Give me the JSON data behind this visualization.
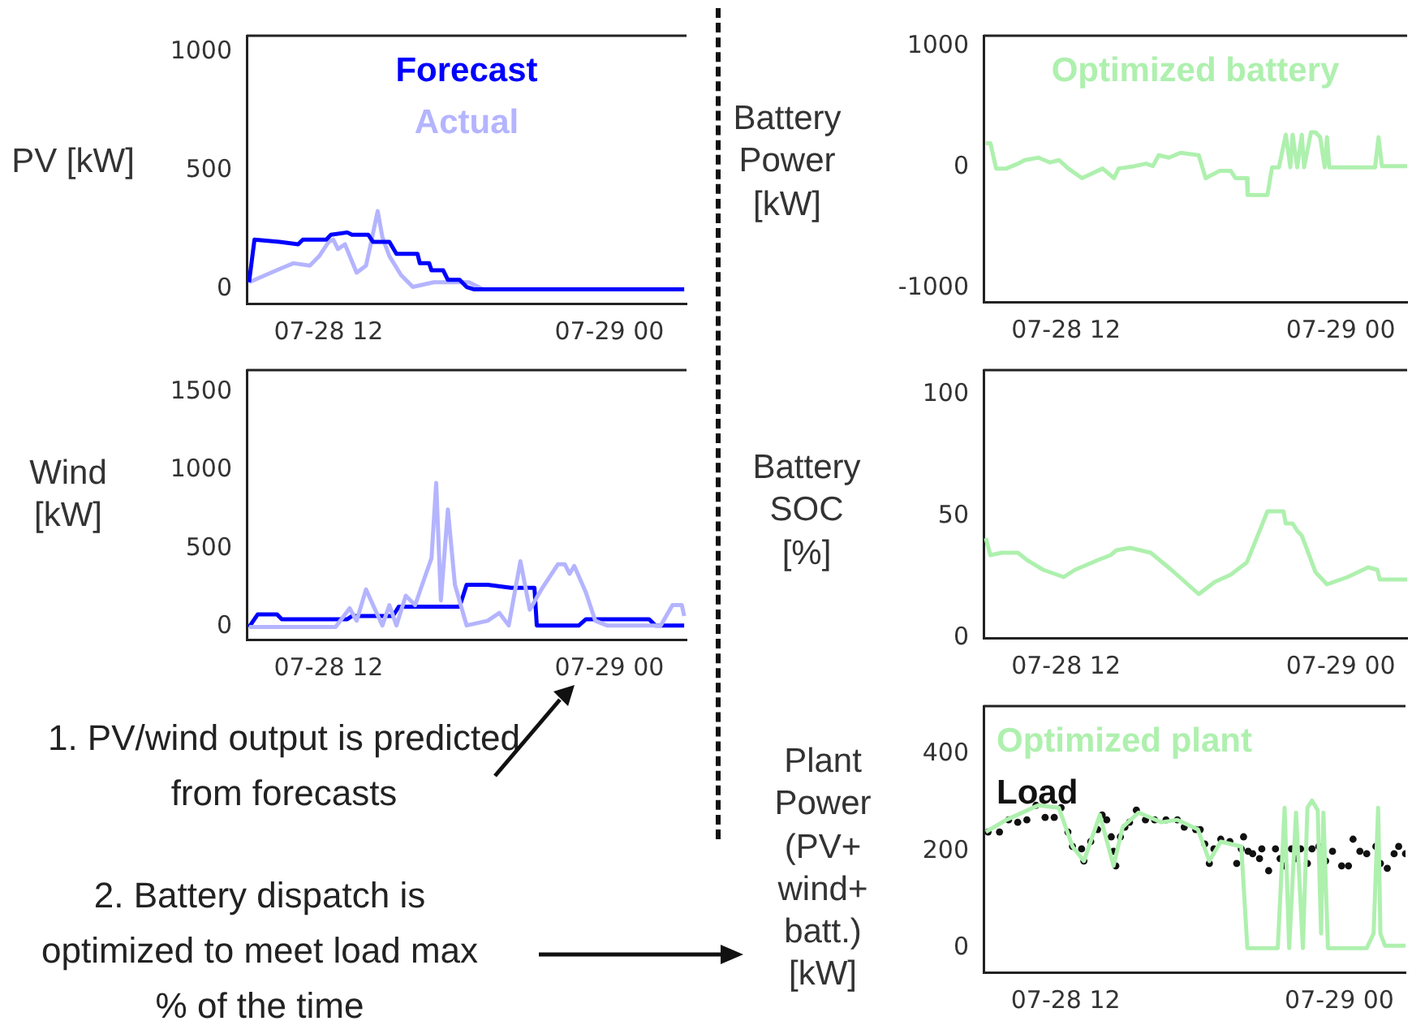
{
  "chart_data": [
    {
      "type": "line",
      "ylabel": "PV [kW]",
      "xlim": [
        "--07-28T08:30",
        "--07-29T03:18"
      ],
      "xticks": [
        {
          "value": "--07-28T12:00",
          "label": "07-28 12"
        },
        {
          "value": "--07-29T00:00",
          "label": "07-29 00"
        }
      ],
      "ylim": [
        -60,
        1070
      ],
      "yticks": [
        0,
        500,
        1000
      ],
      "legend": "top",
      "series": [
        {
          "name": "Forecast",
          "color": "#0000ff",
          "x": [
            "--07-28T08:36",
            "--07-28T08:50",
            "--07-28T09:54",
            "--07-28T10:42",
            "--07-28T10:54",
            "--07-28T11:54",
            "--07-28T12:06",
            "--07-28T12:48",
            "--07-28T13:00",
            "--07-28T13:42",
            "--07-28T13:54",
            "--07-28T14:36",
            "--07-28T14:54",
            "--07-28T15:48",
            "--07-28T15:54",
            "--07-28T16:18",
            "--07-28T16:24",
            "--07-28T16:54",
            "--07-28T17:06",
            "--07-28T17:36",
            "--07-28T17:54",
            "--07-28T18:12",
            "--07-29T03:12"
          ],
          "values": [
            30,
            210,
            200,
            190,
            210,
            210,
            230,
            240,
            230,
            230,
            200,
            200,
            150,
            150,
            110,
            110,
            80,
            80,
            40,
            40,
            10,
            0,
            0
          ]
        },
        {
          "name": "Actual",
          "color": "#b4b4ff",
          "x": [
            "--07-28T08:36",
            "--07-28T09:18",
            "--07-28T10:00",
            "--07-28T10:30",
            "--07-28T11:12",
            "--07-28T11:36",
            "--07-28T12:00",
            "--07-28T12:12",
            "--07-28T12:24",
            "--07-28T12:42",
            "--07-28T13:12",
            "--07-28T13:36",
            "--07-28T13:48",
            "--07-28T14:06",
            "--07-28T14:18",
            "--07-28T14:36",
            "--07-28T15:06",
            "--07-28T15:36",
            "--07-28T16:30",
            "--07-28T17:24",
            "--07-28T18:00",
            "--07-28T18:36",
            "--07-29T03:12"
          ],
          "values": [
            30,
            60,
            90,
            110,
            100,
            140,
            200,
            210,
            170,
            190,
            70,
            100,
            190,
            330,
            220,
            140,
            60,
            10,
            30,
            30,
            30,
            0,
            0
          ]
        }
      ]
    },
    {
      "type": "line",
      "ylabel": "Wind [kW]",
      "xlim": [
        "--07-28T08:30",
        "--07-29T03:18"
      ],
      "xticks": [
        {
          "value": "--07-28T12:00",
          "label": "07-28 12"
        },
        {
          "value": "--07-29T00:00",
          "label": "07-29 00"
        }
      ],
      "ylim": [
        -80,
        1640
      ],
      "yticks": [
        0,
        500,
        1000,
        1500
      ],
      "annotations": [
        "1. PV/wind output is predicted from forecasts"
      ],
      "series": [
        {
          "color": "#b4b4ff",
          "x": [
            "--07-28T08:36",
            "--07-28T09:48",
            "--07-28T12:18",
            "--07-28T12:54",
            "--07-28T13:12",
            "--07-28T13:36",
            "--07-28T13:54",
            "--07-28T14:18",
            "--07-28T14:36",
            "--07-28T14:54",
            "--07-28T15:18",
            "--07-28T15:42",
            "--07-28T16:00",
            "--07-28T16:24",
            "--07-28T16:36",
            "--07-28T16:48",
            "--07-28T17:06",
            "--07-28T17:24",
            "--07-28T17:54",
            "--07-28T18:48",
            "--07-28T19:18",
            "--07-28T19:42",
            "--07-28T20:12",
            "--07-28T20:36",
            "--07-28T21:06",
            "--07-28T21:48",
            "--07-28T22:06",
            "--07-28T22:18",
            "--07-28T22:30",
            "--07-28T23:00",
            "--07-28T23:24",
            "--07-28T23:54",
            "--07-29T02:12",
            "--07-29T02:42",
            "--07-29T03:06",
            "--07-29T03:12"
          ],
          "values": [
            0,
            0,
            0,
            120,
            40,
            240,
            140,
            10,
            140,
            10,
            200,
            140,
            270,
            440,
            920,
            170,
            750,
            270,
            10,
            40,
            90,
            10,
            420,
            110,
            240,
            400,
            400,
            340,
            390,
            220,
            40,
            10,
            10,
            140,
            140,
            70
          ]
        },
        {
          "color": "#0000ff",
          "x": [
            "--07-28T08:36",
            "--07-28T08:58",
            "--07-28T09:48",
            "--07-28T10:00",
            "--07-28T12:48",
            "--07-28T13:00",
            "--07-28T14:45",
            "--07-28T15:00",
            "--07-28T17:36",
            "--07-28T17:54",
            "--07-28T18:48",
            "--07-28T19:48",
            "--07-28T20:48",
            "--07-28T20:54",
            "--07-28T22:42",
            "--07-28T23:00",
            "--07-29T01:42",
            "--07-29T01:58",
            "--07-29T03:12"
          ],
          "values": [
            0,
            80,
            80,
            50,
            50,
            70,
            70,
            130,
            130,
            270,
            270,
            250,
            250,
            10,
            10,
            50,
            50,
            10,
            10
          ]
        }
      ]
    },
    {
      "type": "line",
      "ylabel": "Battery Power [kW]",
      "xlim": [
        "--07-28T08:24",
        "--07-29T02:54"
      ],
      "xticks": [
        {
          "value": "--07-28T12:00",
          "label": "07-28 12"
        },
        {
          "value": "--07-29T00:00",
          "label": "07-29 00"
        }
      ],
      "ylim": [
        -1115,
        1090
      ],
      "yticks": [
        -1000,
        0,
        1000
      ],
      "legend": "top",
      "series": [
        {
          "name": "Optimized battery",
          "color": "#aef0ae",
          "x": [
            "--07-28T08:30",
            "--07-28T08:42",
            "--07-28T08:57",
            "--07-28T09:24",
            "--07-28T09:54",
            "--07-28T10:12",
            "--07-28T10:48",
            "--07-28T11:18",
            "--07-28T11:42",
            "--07-28T12:06",
            "--07-28T12:42",
            "--07-28T13:36",
            "--07-28T14:06",
            "--07-28T14:18",
            "--07-28T15:00",
            "--07-28T15:30",
            "--07-28T15:48",
            "--07-28T16:03",
            "--07-28T16:30",
            "--07-28T17:00",
            "--07-28T17:48",
            "--07-28T18:06",
            "--07-28T18:42",
            "--07-28T19:12",
            "--07-28T19:24",
            "--07-28T19:54",
            "--07-28T19:56",
            "--07-28T20:48",
            "--07-28T21:00",
            "--07-28T21:18",
            "--07-28T21:36",
            "--07-28T21:48",
            "--07-28T21:54",
            "--07-28T22:06",
            "--07-28T22:18",
            "--07-28T22:24",
            "--07-28T22:42",
            "--07-28T22:54",
            "--07-28T23:06",
            "--07-28T23:18",
            "--07-28T23:24",
            "--07-28T23:30",
            "--07-29T01:30",
            "--07-29T01:39",
            "--07-29T01:48",
            "--07-29T02:54"
          ],
          "values": [
            200,
            200,
            -10,
            -10,
            30,
            60,
            80,
            40,
            60,
            -10,
            -90,
            -10,
            -90,
            -10,
            10,
            30,
            10,
            100,
            80,
            120,
            100,
            -90,
            -30,
            -30,
            -90,
            -90,
            -230,
            -230,
            0,
            0,
            270,
            0,
            270,
            0,
            270,
            0,
            290,
            290,
            250,
            0,
            250,
            0,
            0,
            250,
            10,
            10
          ]
        }
      ]
    },
    {
      "type": "line",
      "ylabel": "Battery SOC [%]",
      "xlim": [
        "--07-28T08:24",
        "--07-29T02:54"
      ],
      "xticks": [
        {
          "value": "--07-28T12:00",
          "label": "07-28 12"
        },
        {
          "value": "--07-29T00:00",
          "label": "07-29 00"
        }
      ],
      "ylim": [
        0,
        110
      ],
      "yticks": [
        0,
        50,
        100
      ],
      "series": [
        {
          "color": "#aef0ae",
          "x": [
            "--07-28T08:30",
            "--07-28T08:42",
            "--07-28T09:12",
            "--07-28T09:54",
            "--07-28T10:18",
            "--07-28T11:00",
            "--07-28T11:54",
            "--07-28T12:24",
            "--07-28T13:24",
            "--07-28T13:57",
            "--07-28T14:12",
            "--07-28T14:48",
            "--07-28T15:42",
            "--07-28T16:36",
            "--07-28T17:48",
            "--07-28T18:30",
            "--07-28T19:12",
            "--07-28T19:54",
            "--07-28T20:48",
            "--07-28T21:30",
            "--07-28T21:36",
            "--07-28T21:54",
            "--07-28T22:06",
            "--07-28T22:18",
            "--07-28T22:54",
            "--07-28T23:24",
            "--07-29T00:18",
            "--07-29T01:12",
            "--07-29T01:36",
            "--07-29T01:42",
            "--07-29T02:54"
          ],
          "values": [
            41,
            34,
            35,
            35,
            32,
            28,
            25,
            28,
            32,
            34,
            36,
            37,
            35,
            28,
            18,
            23,
            26,
            31,
            52,
            52,
            47,
            47,
            44,
            42,
            27,
            22,
            25,
            29,
            28,
            24,
            24
          ]
        }
      ]
    },
    {
      "type": "line",
      "ylabel": "Plant Power (PV+ wind+ batt.) [kW]",
      "xlim": [
        "--07-28T08:24",
        "--07-29T02:54"
      ],
      "xticks": [
        {
          "value": "--07-28T12:00",
          "label": "07-28 12"
        },
        {
          "value": "--07-29T00:00",
          "label": "07-29 00"
        }
      ],
      "ylim": [
        -50,
        500
      ],
      "yticks": [
        0,
        200,
        400
      ],
      "legend": "top left",
      "annotations": [
        "2. Battery dispatch is optimized to meet load max % of the time"
      ],
      "series": [
        {
          "name": "Optimized plant",
          "color": "#aef0ae",
          "x": [
            "--07-28T08:30",
            "--07-28T09:24",
            "--07-28T10:48",
            "--07-28T11:42",
            "--07-28T12:18",
            "--07-28T12:48",
            "--07-28T13:30",
            "--07-28T14:06",
            "--07-28T14:30",
            "--07-28T15:12",
            "--07-28T16:12",
            "--07-28T16:54",
            "--07-28T17:48",
            "--07-28T18:18",
            "--07-28T18:48",
            "--07-28T19:42",
            "--07-28T19:58",
            "--07-28T21:18",
            "--07-28T21:36",
            "--07-28T21:48",
            "--07-28T22:06",
            "--07-28T22:24",
            "--07-28T22:36",
            "--07-28T22:48",
            "--07-28T23:03",
            "--07-28T23:12",
            "--07-28T23:18",
            "--07-28T23:30",
            "--07-29T01:12",
            "--07-29T01:30",
            "--07-29T01:42",
            "--07-29T01:48",
            "--07-29T02:00",
            "--07-29T02:54"
          ],
          "values": [
            240,
            265,
            295,
            290,
            210,
            180,
            275,
            170,
            250,
            280,
            260,
            265,
            245,
            180,
            220,
            210,
            0,
            0,
            290,
            0,
            280,
            0,
            290,
            305,
            285,
            30,
            280,
            0,
            0,
            30,
            290,
            30,
            5,
            5
          ]
        },
        {
          "name": "Load",
          "type": "scatter",
          "marker": "circle",
          "color": "#111111",
          "x": [
            "--07-28T08:36",
            "--07-28T09:06",
            "--07-28T09:30",
            "--07-28T09:54",
            "--07-28T10:18",
            "--07-28T10:42",
            "--07-28T11:06",
            "--07-28T11:30",
            "--07-28T11:48",
            "--07-28T12:06",
            "--07-28T12:18",
            "--07-28T12:42",
            "--07-28T12:48",
            "--07-28T13:06",
            "--07-28T13:24",
            "--07-28T13:36",
            "--07-28T13:48",
            "--07-28T14:00",
            "--07-28T14:06",
            "--07-28T14:12",
            "--07-28T14:24",
            "--07-28T14:36",
            "--07-28T14:48",
            "--07-28T15:06",
            "--07-28T15:30",
            "--07-28T15:54",
            "--07-28T16:24",
            "--07-28T16:54",
            "--07-28T17:12",
            "--07-28T17:42",
            "--07-28T17:54",
            "--07-28T18:06",
            "--07-28T18:18",
            "--07-28T18:30",
            "--07-28T18:48",
            "--07-28T19:12",
            "--07-28T19:30",
            "--07-28T19:42",
            "--07-28T19:48",
            "--07-28T20:00",
            "--07-28T20:12",
            "--07-28T20:30",
            "--07-28T20:36",
            "--07-28T20:54",
            "--07-28T21:12",
            "--07-28T21:24",
            "--07-28T21:36",
            "--07-28T21:54",
            "--07-28T22:06",
            "--07-28T22:18",
            "--07-28T22:36",
            "--07-28T22:48",
            "--07-28T23:06",
            "--07-28T23:24",
            "--07-28T23:42",
            "--07-29T00:06",
            "--07-29T00:24",
            "--07-29T00:36",
            "--07-29T00:54",
            "--07-29T01:12",
            "--07-29T01:36",
            "--07-29T01:48",
            "--07-29T02:06",
            "--07-29T02:24",
            "--07-29T02:36",
            "--07-29T02:54"
          ],
          "values": [
            240,
            240,
            265,
            260,
            265,
            295,
            270,
            270,
            290,
            240,
            210,
            205,
            180,
            220,
            245,
            275,
            265,
            230,
            200,
            170,
            230,
            250,
            260,
            285,
            265,
            265,
            265,
            265,
            250,
            245,
            245,
            215,
            175,
            205,
            225,
            220,
            175,
            205,
            230,
            200,
            195,
            185,
            205,
            160,
            205,
            185,
            170,
            205,
            185,
            205,
            175,
            205,
            210,
            180,
            200,
            170,
            170,
            225,
            200,
            195,
            210,
            175,
            165,
            195,
            210,
            195
          ]
        }
      ]
    }
  ]
}
